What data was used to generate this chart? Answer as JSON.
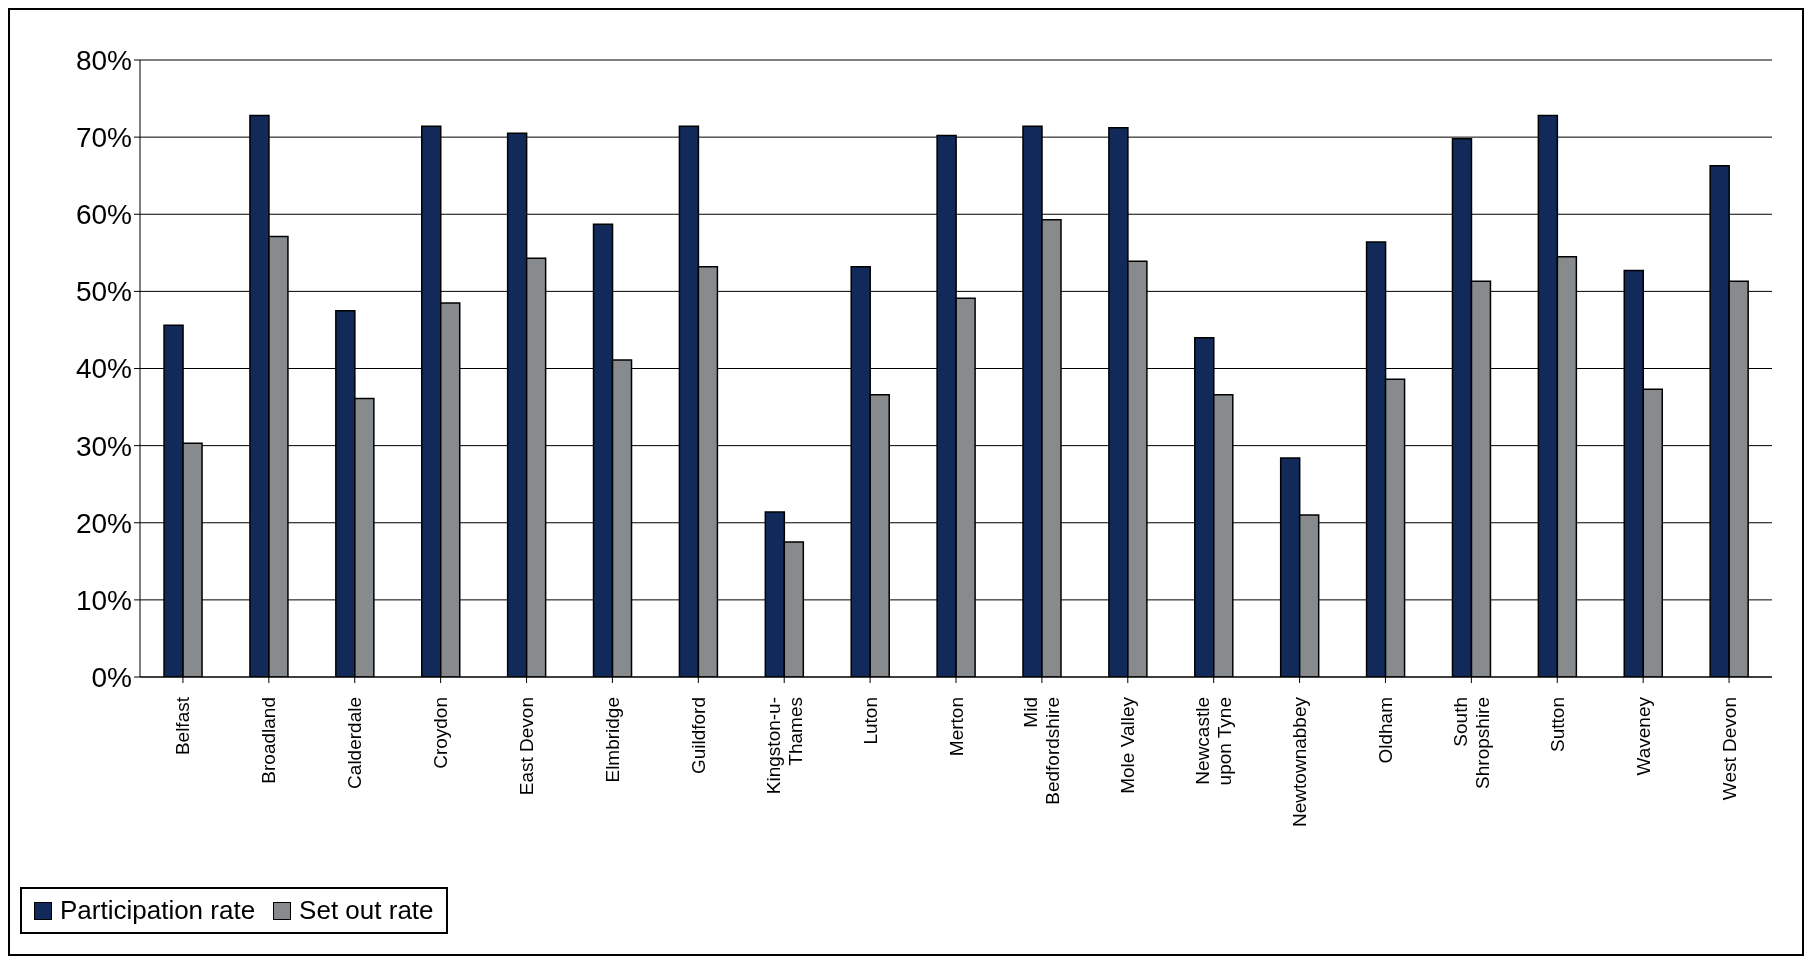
{
  "chart_data": {
    "type": "bar",
    "categories": [
      "Belfast",
      "Broadland",
      "Calderdale",
      "Croydon",
      "East Devon",
      "Elmbridge",
      "Guildford",
      "Kingston-u-Thames",
      "Luton",
      "Merton",
      "Mid Bedfordshire",
      "Mole Valley",
      "Newcastle upon Tyne",
      "Newtownabbey",
      "Oldham",
      "South Shropshire",
      "Sutton",
      "Waveney",
      "West Devon"
    ],
    "series": [
      {
        "name": "Participation rate",
        "color": "#112a5a",
        "values": [
          45.6,
          72.8,
          47.5,
          71.4,
          70.5,
          58.7,
          71.4,
          21.4,
          53.2,
          70.2,
          71.4,
          71.2,
          44.0,
          28.4,
          56.4,
          69.8,
          72.8,
          52.7,
          66.3
        ]
      },
      {
        "name": "Set out rate",
        "color": "#878b8e",
        "values": [
          30.3,
          57.1,
          36.1,
          48.5,
          54.3,
          41.1,
          53.2,
          17.5,
          36.6,
          49.1,
          59.3,
          53.9,
          36.6,
          21.0,
          38.6,
          51.3,
          54.5,
          37.3,
          51.3
        ]
      }
    ],
    "ylim": [
      0,
      80
    ],
    "yticks": [
      {
        "value": 0,
        "label": "0%"
      },
      {
        "value": 10,
        "label": "10%"
      },
      {
        "value": 20,
        "label": "20%"
      },
      {
        "value": 30,
        "label": "30%"
      },
      {
        "value": 40,
        "label": "40%"
      },
      {
        "value": 50,
        "label": "50%"
      },
      {
        "value": 60,
        "label": "60%"
      },
      {
        "value": 70,
        "label": "70%"
      },
      {
        "value": 80,
        "label": "80%"
      }
    ],
    "grid": "y",
    "legend": "bottom"
  }
}
